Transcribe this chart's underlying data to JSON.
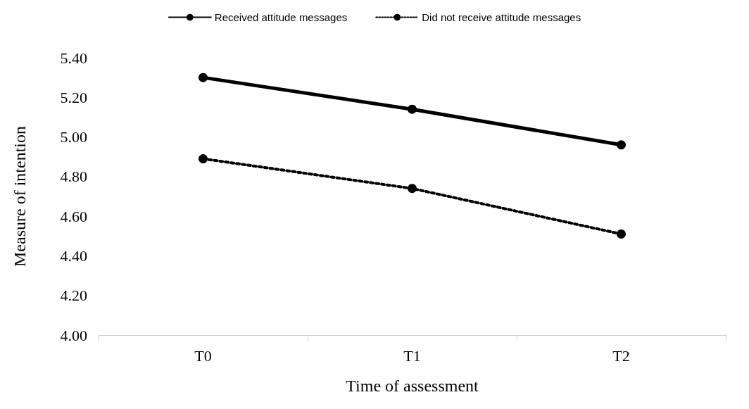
{
  "chart_data": {
    "type": "line",
    "xlabel": "Time of assessment",
    "ylabel": "Measure of intention",
    "categories": [
      "T0",
      "T1",
      "T2"
    ],
    "series": [
      {
        "name": "Received attitude messages",
        "color": "#000000",
        "values": [
          5.3,
          5.14,
          4.96
        ],
        "line_style": "solid"
      },
      {
        "name": "Did not receive attitude messages",
        "color": "#000000",
        "values": [
          4.89,
          4.74,
          4.51
        ],
        "line_style": "dotted"
      }
    ],
    "ylim": [
      4.0,
      5.4
    ],
    "yticks": [
      {
        "value": 4.0,
        "label": "4.00"
      },
      {
        "value": 4.2,
        "label": "4.20"
      },
      {
        "value": 4.4,
        "label": "4.40"
      },
      {
        "value": 4.6,
        "label": "4.60"
      },
      {
        "value": 4.8,
        "label": "4.80"
      },
      {
        "value": 5.0,
        "label": "5.00"
      },
      {
        "value": 5.2,
        "label": "5.20"
      },
      {
        "value": 5.4,
        "label": "5.40"
      }
    ],
    "grid": false,
    "legend": "top",
    "marker": "circle"
  }
}
